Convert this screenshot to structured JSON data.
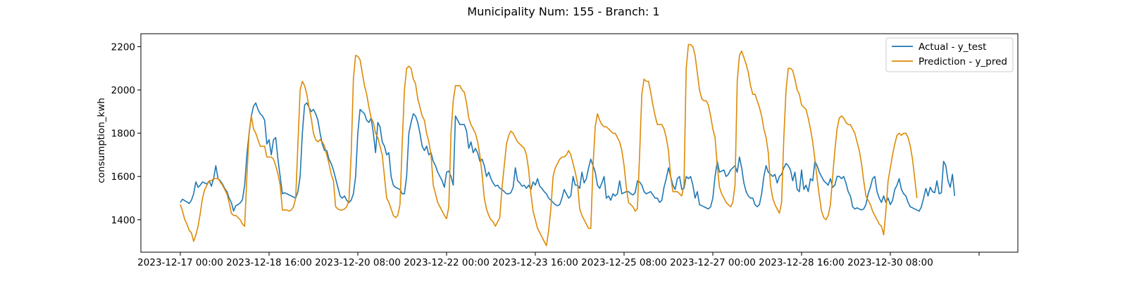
{
  "chart_data": {
    "type": "line",
    "title": "Municipality Num: 155 - Branch: 1",
    "xlabel": "",
    "ylabel": "consumption_kwh",
    "x_start": "2023-12-17 00:00",
    "x_step_hours": 1,
    "ylim": [
      1250,
      2260
    ],
    "y_ticks": [
      1400,
      1600,
      1800,
      2000,
      2200
    ],
    "x_ticks": [
      {
        "index": 0,
        "label": "2023-12-17 00:00"
      },
      {
        "index": 40,
        "label": "2023-12-18 16:00"
      },
      {
        "index": 80,
        "label": "2023-12-20 08:00"
      },
      {
        "index": 120,
        "label": "2023-12-22 00:00"
      },
      {
        "index": 160,
        "label": "2023-12-23 16:00"
      },
      {
        "index": 200,
        "label": "2023-12-25 08:00"
      },
      {
        "index": 240,
        "label": "2023-12-27 00:00"
      },
      {
        "index": 280,
        "label": "2023-12-28 16:00"
      },
      {
        "index": 320,
        "label": "2023-12-30 08:00"
      },
      {
        "index": 360,
        "label": ""
      }
    ],
    "legend_position": "top-right",
    "grid": false,
    "series": [
      {
        "name": "Actual - y_test",
        "color": "#1f77b4",
        "values": [
          1480,
          1495,
          1488,
          1482,
          1475,
          1490,
          1520,
          1575,
          1550,
          1560,
          1575,
          1570,
          1565,
          1580,
          1555,
          1590,
          1650,
          1590,
          1580,
          1565,
          1545,
          1530,
          1500,
          1480,
          1440,
          1465,
          1470,
          1478,
          1492,
          1560,
          1700,
          1800,
          1880,
          1925,
          1940,
          1910,
          1890,
          1880,
          1860,
          1750,
          1770,
          1700,
          1770,
          1780,
          1680,
          1600,
          1520,
          1525,
          1520,
          1515,
          1510,
          1505,
          1500,
          1530,
          1600,
          1800,
          1930,
          1940,
          1920,
          1900,
          1910,
          1890,
          1860,
          1800,
          1750,
          1720,
          1720,
          1680,
          1660,
          1630,
          1590,
          1550,
          1510,
          1500,
          1510,
          1490,
          1480,
          1490,
          1520,
          1600,
          1800,
          1910,
          1900,
          1890,
          1860,
          1850,
          1870,
          1800,
          1710,
          1850,
          1830,
          1760,
          1740,
          1700,
          1710,
          1600,
          1560,
          1550,
          1545,
          1540,
          1520,
          1520,
          1600,
          1800,
          1850,
          1890,
          1880,
          1850,
          1800,
          1740,
          1720,
          1740,
          1700,
          1710,
          1670,
          1650,
          1620,
          1600,
          1580,
          1550,
          1620,
          1625,
          1600,
          1560,
          1880,
          1860,
          1840,
          1840,
          1840,
          1810,
          1730,
          1760,
          1710,
          1730,
          1710,
          1670,
          1680,
          1650,
          1600,
          1620,
          1590,
          1570,
          1555,
          1560,
          1545,
          1540,
          1530,
          1520,
          1520,
          1525,
          1550,
          1640,
          1580,
          1570,
          1555,
          1560,
          1545,
          1560,
          1540,
          1575,
          1560,
          1590,
          1555,
          1545,
          1530,
          1520,
          1500,
          1490,
          1480,
          1470,
          1465,
          1470,
          1500,
          1540,
          1520,
          1500,
          1510,
          1600,
          1560,
          1560,
          1545,
          1620,
          1570,
          1590,
          1640,
          1680,
          1650,
          1620,
          1560,
          1545,
          1570,
          1600,
          1500,
          1510,
          1490,
          1520,
          1510,
          1520,
          1580,
          1520,
          1525,
          1530,
          1530,
          1520,
          1515,
          1525,
          1580,
          1575,
          1560,
          1530,
          1520,
          1525,
          1530,
          1515,
          1500,
          1500,
          1480,
          1490,
          1550,
          1590,
          1640,
          1600,
          1560,
          1540,
          1590,
          1600,
          1540,
          1545,
          1600,
          1590,
          1600,
          1560,
          1500,
          1530,
          1470,
          1465,
          1460,
          1455,
          1450,
          1460,
          1500,
          1600,
          1670,
          1620,
          1625,
          1630,
          1600,
          1610,
          1630,
          1640,
          1650,
          1620,
          1690,
          1640,
          1570,
          1530,
          1510,
          1500,
          1500,
          1470,
          1460,
          1470,
          1520,
          1600,
          1650,
          1620,
          1610,
          1600,
          1610,
          1570,
          1600,
          1610,
          1640,
          1660,
          1650,
          1630,
          1580,
          1620,
          1540,
          1530,
          1630,
          1540,
          1560,
          1530,
          1590,
          1580,
          1670,
          1650,
          1620,
          1600,
          1580,
          1570,
          1560,
          1590,
          1550,
          1560,
          1600,
          1600,
          1590,
          1600,
          1570,
          1530,
          1510,
          1460,
          1450,
          1455,
          1450,
          1445,
          1450,
          1470,
          1520,
          1550,
          1590,
          1600,
          1530,
          1500,
          1480,
          1510,
          1480,
          1500,
          1470,
          1490,
          1540,
          1560,
          1590,
          1540,
          1520,
          1510,
          1480,
          1460,
          1455,
          1450,
          1445,
          1440,
          1460,
          1500,
          1545,
          1510,
          1550,
          1530,
          1525,
          1580,
          1520,
          1525,
          1670,
          1650,
          1580,
          1550,
          1610,
          1510
        ]
      },
      {
        "name": "Prediction - y_pred",
        "color": "#dd8a06",
        "values": [
          1470,
          1440,
          1400,
          1380,
          1350,
          1340,
          1300,
          1330,
          1370,
          1430,
          1500,
          1540,
          1560,
          1580,
          1580,
          1590,
          1590,
          1590,
          1575,
          1560,
          1540,
          1520,
          1480,
          1430,
          1420,
          1420,
          1410,
          1400,
          1380,
          1370,
          1600,
          1800,
          1880,
          1820,
          1800,
          1770,
          1740,
          1740,
          1740,
          1690,
          1690,
          1690,
          1680,
          1650,
          1610,
          1560,
          1445,
          1445,
          1445,
          1440,
          1445,
          1460,
          1500,
          1750,
          2000,
          2040,
          2020,
          1980,
          1920,
          1870,
          1800,
          1770,
          1760,
          1770,
          1760,
          1740,
          1700,
          1660,
          1610,
          1580,
          1460,
          1450,
          1445,
          1445,
          1450,
          1460,
          1490,
          1700,
          2050,
          2160,
          2155,
          2140,
          2080,
          2020,
          1980,
          1920,
          1870,
          1850,
          1800,
          1780,
          1740,
          1700,
          1600,
          1500,
          1480,
          1450,
          1420,
          1410,
          1420,
          1470,
          1750,
          2000,
          2100,
          2110,
          2100,
          2050,
          2030,
          1960,
          1920,
          1880,
          1860,
          1800,
          1760,
          1700,
          1560,
          1520,
          1480,
          1460,
          1440,
          1420,
          1405,
          1460,
          1800,
          1950,
          2020,
          2020,
          2020,
          2000,
          1990,
          1940,
          1870,
          1840,
          1820,
          1800,
          1760,
          1700,
          1610,
          1500,
          1450,
          1420,
          1400,
          1390,
          1370,
          1390,
          1410,
          1550,
          1650,
          1750,
          1790,
          1810,
          1800,
          1780,
          1760,
          1750,
          1740,
          1730,
          1700,
          1630,
          1520,
          1440,
          1400,
          1360,
          1340,
          1320,
          1300,
          1280,
          1350,
          1450,
          1600,
          1640,
          1660,
          1680,
          1690,
          1690,
          1700,
          1720,
          1700,
          1660,
          1620,
          1570,
          1450,
          1420,
          1400,
          1380,
          1360,
          1360,
          1650,
          1830,
          1890,
          1860,
          1840,
          1830,
          1830,
          1820,
          1810,
          1800,
          1800,
          1780,
          1760,
          1720,
          1650,
          1550,
          1480,
          1470,
          1460,
          1440,
          1450,
          1700,
          1980,
          2050,
          2040,
          2040,
          1990,
          1930,
          1880,
          1840,
          1840,
          1840,
          1820,
          1780,
          1720,
          1600,
          1530,
          1530,
          1530,
          1520,
          1510,
          1560,
          2100,
          2210,
          2210,
          2200,
          2160,
          2080,
          2000,
          1960,
          1950,
          1950,
          1930,
          1880,
          1820,
          1780,
          1650,
          1550,
          1520,
          1500,
          1480,
          1470,
          1460,
          1480,
          1560,
          2040,
          2160,
          2180,
          2150,
          2120,
          2080,
          2020,
          1980,
          1980,
          1950,
          1920,
          1880,
          1820,
          1780,
          1710,
          1560,
          1500,
          1470,
          1450,
          1430,
          1480,
          1780,
          2000,
          2100,
          2100,
          2090,
          2050,
          2000,
          1980,
          1930,
          1920,
          1910,
          1870,
          1820,
          1760,
          1680,
          1590,
          1510,
          1440,
          1410,
          1400,
          1420,
          1470,
          1600,
          1720,
          1820,
          1870,
          1880,
          1870,
          1850,
          1840,
          1840,
          1820,
          1800,
          1760,
          1720,
          1660,
          1580,
          1510,
          1490,
          1470,
          1440,
          1420,
          1400,
          1380,
          1370,
          1330,
          1440,
          1580,
          1640,
          1700,
          1750,
          1790,
          1800,
          1790,
          1800,
          1800,
          1780,
          1740,
          1680,
          1590,
          1500
        ]
      }
    ]
  }
}
